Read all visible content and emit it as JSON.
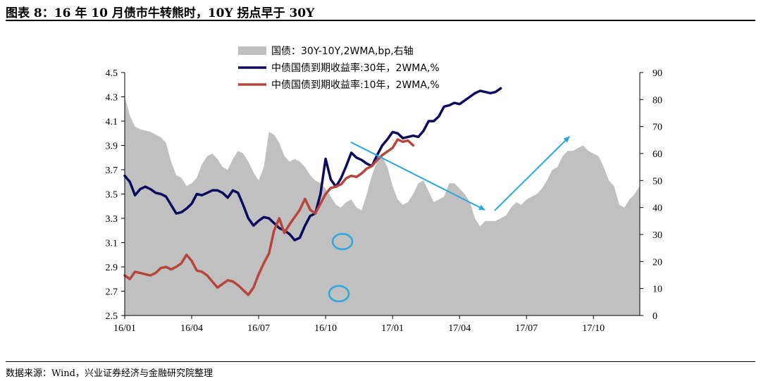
{
  "title": "图表 8：16 年 10 月债市牛转熊时，10Y 拐点早于 30Y",
  "source": "数据来源：Wind，兴业证券经济与金融研究院整理",
  "colors": {
    "area": "#c0c0c0",
    "y30": "#0a0a5e",
    "y10": "#b8453c",
    "annotation": "#29a8e0"
  },
  "chart_data": {
    "type": "area+line",
    "title": "",
    "x_ticks": [
      "16/01",
      "16/04",
      "16/07",
      "16/10",
      "17/01",
      "17/04",
      "17/07",
      "17/10"
    ],
    "x_range_weeks": [
      0,
      100
    ],
    "x_tick_weeks": [
      0,
      13,
      26,
      39,
      52,
      65,
      78,
      91
    ],
    "y_left": {
      "range": [
        2.5,
        4.5
      ],
      "ticks": [
        "2.5",
        "2.7",
        "2.9",
        "3.1",
        "3.3",
        "3.5",
        "3.7",
        "3.9",
        "4.1",
        "4.3",
        "4.5"
      ]
    },
    "y_right": {
      "range": [
        0,
        90
      ],
      "ticks": [
        "0",
        "10",
        "20",
        "30",
        "40",
        "50",
        "60",
        "70",
        "80",
        "90"
      ]
    },
    "legend": [
      "国债：30Y-10Y,2WMA,bp,右轴",
      "中债国债到期收益率:30年，2WMA,%",
      "中债国债到期收益率:10年，2WMA,%"
    ],
    "series": [
      {
        "name": "国债：30Y-10Y,2WMA,bp,右轴",
        "axis": "right",
        "kind": "area",
        "points": [
          [
            0,
            81
          ],
          [
            1,
            74
          ],
          [
            2,
            70
          ],
          [
            3,
            69
          ],
          [
            5,
            68
          ],
          [
            7,
            66
          ],
          [
            8,
            64
          ],
          [
            9,
            57
          ],
          [
            10,
            52
          ],
          [
            11,
            51
          ],
          [
            12,
            48
          ],
          [
            13,
            49
          ],
          [
            14,
            51
          ],
          [
            15,
            56
          ],
          [
            16,
            59
          ],
          [
            17,
            60
          ],
          [
            18,
            58
          ],
          [
            19,
            55
          ],
          [
            20,
            54
          ],
          [
            21,
            58
          ],
          [
            22,
            61
          ],
          [
            23,
            60
          ],
          [
            24,
            57
          ],
          [
            25,
            53
          ],
          [
            26,
            50
          ],
          [
            27,
            55
          ],
          [
            28,
            68
          ],
          [
            29,
            67
          ],
          [
            30,
            64
          ],
          [
            31,
            59
          ],
          [
            32,
            57
          ],
          [
            33,
            58
          ],
          [
            34,
            57
          ],
          [
            35,
            55
          ],
          [
            36,
            52
          ],
          [
            37,
            50
          ],
          [
            38,
            49
          ],
          [
            39,
            47
          ],
          [
            40,
            44
          ],
          [
            41,
            41
          ],
          [
            42,
            40
          ],
          [
            43,
            42
          ],
          [
            44,
            43
          ],
          [
            45,
            40
          ],
          [
            46,
            39
          ],
          [
            47,
            45
          ],
          [
            48,
            52
          ],
          [
            49,
            57
          ],
          [
            50,
            59
          ],
          [
            51,
            55
          ],
          [
            52,
            48
          ],
          [
            53,
            43
          ],
          [
            54,
            41
          ],
          [
            55,
            42
          ],
          [
            56,
            45
          ],
          [
            57,
            49
          ],
          [
            58,
            50
          ],
          [
            59,
            46
          ],
          [
            60,
            42
          ],
          [
            61,
            43
          ],
          [
            62,
            44
          ],
          [
            63,
            49
          ],
          [
            64,
            49
          ],
          [
            65,
            47
          ],
          [
            66,
            45
          ],
          [
            67,
            42
          ],
          [
            68,
            36
          ],
          [
            69,
            33
          ],
          [
            70,
            35
          ],
          [
            71,
            35
          ],
          [
            72,
            35
          ],
          [
            74,
            37
          ],
          [
            75,
            40
          ],
          [
            76,
            42
          ],
          [
            77,
            41
          ],
          [
            78,
            43
          ],
          [
            79,
            44
          ],
          [
            80,
            45
          ],
          [
            81,
            47
          ],
          [
            82,
            50
          ],
          [
            83,
            54
          ],
          [
            84,
            55
          ],
          [
            85,
            59
          ],
          [
            86,
            61
          ],
          [
            87,
            61
          ],
          [
            88,
            62
          ],
          [
            89,
            63
          ],
          [
            90,
            61
          ],
          [
            91,
            60
          ],
          [
            92,
            59
          ],
          [
            93,
            55
          ],
          [
            94,
            50
          ],
          [
            95,
            48
          ],
          [
            96,
            41
          ],
          [
            97,
            40
          ],
          [
            98,
            43
          ],
          [
            99,
            45
          ],
          [
            100,
            48
          ]
        ]
      },
      {
        "name": "中债国债到期收益率:30年，2WMA,%",
        "axis": "left",
        "kind": "line",
        "points": [
          [
            0,
            3.65
          ],
          [
            1,
            3.6
          ],
          [
            2,
            3.49
          ],
          [
            3,
            3.54
          ],
          [
            4,
            3.56
          ],
          [
            5,
            3.54
          ],
          [
            6,
            3.51
          ],
          [
            7,
            3.5
          ],
          [
            8,
            3.48
          ],
          [
            9,
            3.41
          ],
          [
            10,
            3.34
          ],
          [
            11,
            3.35
          ],
          [
            12,
            3.38
          ],
          [
            13,
            3.42
          ],
          [
            14,
            3.5
          ],
          [
            15,
            3.49
          ],
          [
            16,
            3.51
          ],
          [
            17,
            3.53
          ],
          [
            18,
            3.53
          ],
          [
            19,
            3.51
          ],
          [
            20,
            3.47
          ],
          [
            21,
            3.53
          ],
          [
            22,
            3.51
          ],
          [
            23,
            3.41
          ],
          [
            24,
            3.3
          ],
          [
            25,
            3.24
          ],
          [
            26,
            3.28
          ],
          [
            27,
            3.31
          ],
          [
            28,
            3.3
          ],
          [
            29,
            3.26
          ],
          [
            30,
            3.22
          ],
          [
            31,
            3.2
          ],
          [
            32,
            3.17
          ],
          [
            33,
            3.12
          ],
          [
            34,
            3.14
          ],
          [
            35,
            3.24
          ],
          [
            36,
            3.32
          ],
          [
            37,
            3.34
          ],
          [
            38,
            3.5
          ],
          [
            39,
            3.79
          ],
          [
            40,
            3.62
          ],
          [
            41,
            3.56
          ],
          [
            42,
            3.63
          ],
          [
            43,
            3.73
          ],
          [
            44,
            3.84
          ],
          [
            45,
            3.8
          ],
          [
            46,
            3.78
          ],
          [
            47,
            3.75
          ],
          [
            48,
            3.73
          ],
          [
            49,
            3.82
          ],
          [
            50,
            3.9
          ],
          [
            51,
            3.95
          ],
          [
            52,
            4.01
          ],
          [
            53,
            4.0
          ],
          [
            54,
            3.96
          ],
          [
            55,
            3.97
          ],
          [
            56,
            3.98
          ],
          [
            57,
            3.97
          ],
          [
            58,
            4.02
          ],
          [
            59,
            4.1
          ],
          [
            60,
            4.1
          ],
          [
            61,
            4.14
          ],
          [
            62,
            4.22
          ],
          [
            63,
            4.23
          ],
          [
            64,
            4.25
          ],
          [
            65,
            4.24
          ],
          [
            66,
            4.27
          ],
          [
            67,
            4.3
          ],
          [
            68,
            4.33
          ],
          [
            69,
            4.35
          ],
          [
            70,
            4.34
          ],
          [
            71,
            4.33
          ],
          [
            72,
            4.34
          ],
          [
            73,
            4.37
          ]
        ]
      },
      {
        "name": "中债国债到期收益率:10年，2WMA,%",
        "axis": "left",
        "kind": "line",
        "points": [
          [
            0,
            2.83
          ],
          [
            1,
            2.8
          ],
          [
            2,
            2.86
          ],
          [
            3,
            2.85
          ],
          [
            4,
            2.84
          ],
          [
            5,
            2.83
          ],
          [
            6,
            2.85
          ],
          [
            7,
            2.89
          ],
          [
            8,
            2.9
          ],
          [
            9,
            2.88
          ],
          [
            10,
            2.9
          ],
          [
            11,
            2.93
          ],
          [
            12,
            3.0
          ],
          [
            13,
            2.95
          ],
          [
            14,
            2.87
          ],
          [
            15,
            2.86
          ],
          [
            16,
            2.83
          ],
          [
            17,
            2.78
          ],
          [
            18,
            2.73
          ],
          [
            19,
            2.76
          ],
          [
            20,
            2.79
          ],
          [
            21,
            2.78
          ],
          [
            22,
            2.75
          ],
          [
            23,
            2.71
          ],
          [
            24,
            2.67
          ],
          [
            25,
            2.73
          ],
          [
            26,
            2.84
          ],
          [
            27,
            2.93
          ],
          [
            28,
            3.01
          ],
          [
            29,
            3.2
          ],
          [
            30,
            3.3
          ],
          [
            31,
            3.18
          ],
          [
            32,
            3.25
          ],
          [
            33,
            3.31
          ],
          [
            34,
            3.37
          ],
          [
            35,
            3.46
          ],
          [
            36,
            3.37
          ],
          [
            37,
            3.34
          ],
          [
            38,
            3.42
          ],
          [
            39,
            3.5
          ],
          [
            40,
            3.55
          ],
          [
            41,
            3.56
          ],
          [
            42,
            3.58
          ],
          [
            43,
            3.63
          ],
          [
            44,
            3.65
          ],
          [
            45,
            3.64
          ],
          [
            46,
            3.67
          ],
          [
            47,
            3.71
          ],
          [
            48,
            3.73
          ],
          [
            49,
            3.78
          ],
          [
            50,
            3.82
          ],
          [
            51,
            3.85
          ],
          [
            52,
            3.88
          ],
          [
            53,
            3.95
          ],
          [
            54,
            3.93
          ],
          [
            55,
            3.94
          ],
          [
            56,
            3.9
          ]
        ]
      }
    ]
  }
}
